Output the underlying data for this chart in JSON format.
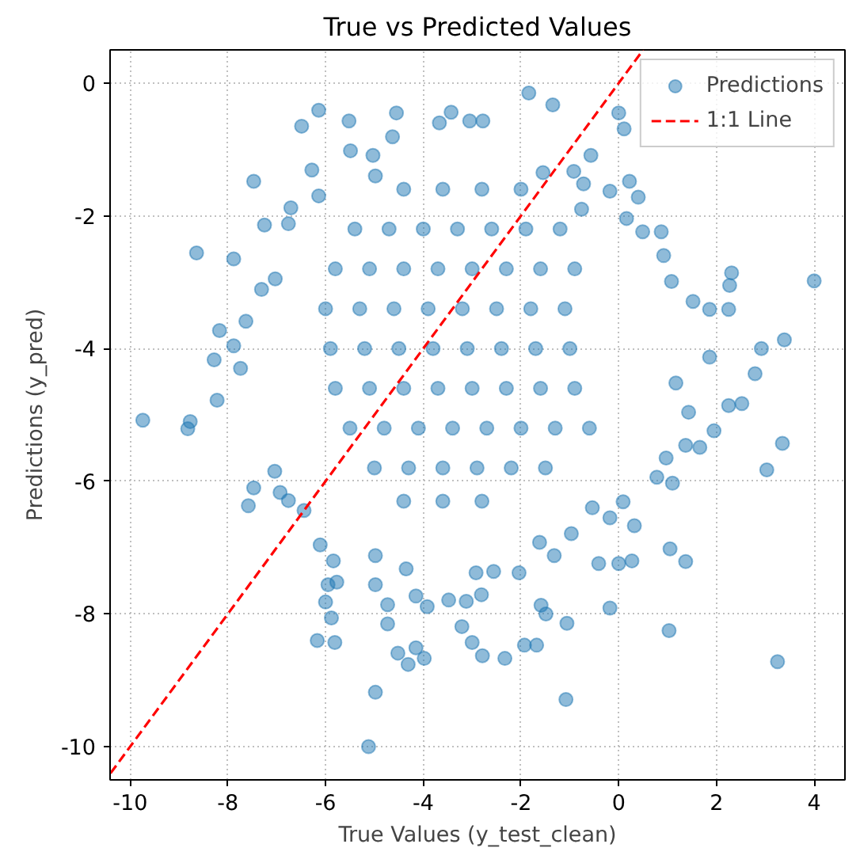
{
  "chart_data": {
    "type": "scatter",
    "title": "True vs Predicted Values",
    "xlabel": "True Values (y_test_clean)",
    "ylabel": "Predictions (y_pred)",
    "xlim": [
      -10.41,
      4.63
    ],
    "ylim": [
      -10.5,
      0.5
    ],
    "xticks": [
      -10,
      -8,
      -6,
      -4,
      -2,
      0,
      2,
      4
    ],
    "yticks": [
      -10,
      -8,
      -6,
      -4,
      -2,
      0
    ],
    "grid": true,
    "legend": "top right",
    "series": [
      {
        "name": "Predictions",
        "color": "#1f77b4",
        "marker": "circle",
        "x": [
          -6.14,
          -6.49,
          -5.52,
          -4.55,
          -7.47,
          -8.64,
          -7.88,
          -7.25,
          -6.28,
          -5.49,
          -6.14,
          -3.43,
          -3.67,
          -4.63,
          -8.17,
          -8.28,
          -7.88,
          -8.22,
          -9.74,
          -8.77,
          -7.31,
          -7.03,
          -6.76,
          -6.71,
          -7.63,
          -7.74,
          -5.03,
          -4.98,
          -1.84,
          -1.35,
          0.0,
          0.11,
          -0.57,
          0.22,
          0.4,
          -0.18,
          0.16,
          0.49,
          0.87,
          0.92,
          1.08,
          1.52,
          1.86,
          2.25,
          2.31,
          2.27,
          4.0,
          3.39,
          2.92,
          1.86,
          2.79,
          1.17,
          2.25,
          2.52,
          1.43,
          -0.92,
          -0.72,
          -3.05,
          -2.78,
          -1.55,
          -0.76,
          -8.82,
          -7.47,
          -7.58,
          -7.04,
          -6.17,
          -5.81,
          -5.88,
          -6.0,
          -5.95,
          -5.77,
          -5.84,
          -4.98,
          -5.12,
          -4.73,
          -4.73,
          -4.52,
          -4.31,
          -4.15,
          -3.98,
          -3.92,
          -4.98,
          -4.98,
          -4.35,
          -4.15,
          -3.21,
          -3.48,
          -3.0,
          -2.92,
          -6.44,
          -6.11,
          -6.93,
          -6.76,
          3.35,
          3.03,
          3.25,
          1.03,
          -1.08,
          -0.18,
          -1.06,
          -1.93,
          -1.68,
          -2.33,
          -2.79,
          -1.59,
          -1.49,
          -2.81,
          -3.12,
          -0.41,
          0.0,
          0.27,
          1.05,
          1.37,
          0.09,
          0.32,
          1.1,
          0.78,
          1.95,
          1.37,
          1.66,
          0.97,
          -0.18,
          -1.32,
          -1.62,
          -2.04,
          -2.56,
          -0.97,
          -0.54,
          -4.4,
          -3.6,
          -2.8,
          -2.0,
          -5.4,
          -4.7,
          -4.0,
          -3.3,
          -2.6,
          -1.9,
          -1.2,
          -5.8,
          -5.1,
          -4.4,
          -3.7,
          -3.0,
          -2.3,
          -1.6,
          -0.9,
          -6.0,
          -5.3,
          -4.6,
          -3.9,
          -3.2,
          -2.5,
          -1.8,
          -1.1,
          -5.9,
          -5.2,
          -4.5,
          -3.8,
          -3.1,
          -2.4,
          -1.7,
          -1.0,
          -5.8,
          -5.1,
          -4.4,
          -3.7,
          -3.0,
          -2.3,
          -1.6,
          -0.9,
          -5.5,
          -4.8,
          -4.1,
          -3.4,
          -2.7,
          -2.0,
          -1.3,
          -0.6,
          -5.0,
          -4.3,
          -3.6,
          -2.9,
          -2.2,
          -1.5,
          -4.4,
          -3.6,
          -2.8
        ],
        "values": [
          -0.41,
          -0.65,
          -0.57,
          -0.45,
          -1.48,
          -2.56,
          -2.65,
          -2.14,
          -1.31,
          -1.02,
          -1.7,
          -0.44,
          -0.6,
          -0.81,
          -3.73,
          -4.17,
          -3.96,
          -4.78,
          -5.08,
          -5.1,
          -3.11,
          -2.95,
          -2.12,
          -1.88,
          -3.59,
          -4.3,
          -1.09,
          -1.4,
          -0.15,
          -0.33,
          -0.45,
          -0.69,
          -1.09,
          -1.48,
          -1.72,
          -1.63,
          -2.04,
          -2.24,
          -2.24,
          -2.6,
          -2.99,
          -3.29,
          -3.41,
          -3.41,
          -2.86,
          -3.05,
          -2.98,
          -3.87,
          -4.0,
          -4.13,
          -4.38,
          -4.52,
          -4.86,
          -4.83,
          -4.96,
          -1.33,
          -1.52,
          -0.57,
          -0.57,
          -1.35,
          -1.9,
          -5.21,
          -6.1,
          -6.37,
          -5.85,
          -8.4,
          -8.43,
          -8.06,
          -7.82,
          -7.56,
          -7.52,
          -7.2,
          -9.18,
          -10.0,
          -7.86,
          -8.15,
          -8.59,
          -8.76,
          -8.51,
          -8.67,
          -7.89,
          -7.56,
          -7.12,
          -7.32,
          -7.73,
          -8.19,
          -7.79,
          -8.43,
          -7.38,
          -6.44,
          -6.96,
          -6.17,
          -6.29,
          -5.43,
          -5.83,
          -8.72,
          -8.25,
          -9.29,
          -7.91,
          -8.14,
          -8.47,
          -8.47,
          -8.67,
          -8.63,
          -7.87,
          -8.0,
          -7.71,
          -7.81,
          -7.24,
          -7.24,
          -7.2,
          -7.02,
          -7.21,
          -6.31,
          -6.67,
          -6.03,
          -5.94,
          -5.24,
          -5.46,
          -5.49,
          -5.65,
          -6.55,
          -7.12,
          -6.92,
          -7.38,
          -7.36,
          -6.79,
          -6.4,
          -1.6,
          -1.6,
          -1.6,
          -1.6,
          -2.2,
          -2.2,
          -2.2,
          -2.2,
          -2.2,
          -2.2,
          -2.2,
          -2.8,
          -2.8,
          -2.8,
          -2.8,
          -2.8,
          -2.8,
          -2.8,
          -2.8,
          -3.4,
          -3.4,
          -3.4,
          -3.4,
          -3.4,
          -3.4,
          -3.4,
          -3.4,
          -4.0,
          -4.0,
          -4.0,
          -4.0,
          -4.0,
          -4.0,
          -4.0,
          -4.0,
          -4.6,
          -4.6,
          -4.6,
          -4.6,
          -4.6,
          -4.6,
          -4.6,
          -4.6,
          -5.2,
          -5.2,
          -5.2,
          -5.2,
          -5.2,
          -5.2,
          -5.2,
          -5.2,
          -5.8,
          -5.8,
          -5.8,
          -5.8,
          -5.8,
          -5.8,
          -6.3,
          -6.3,
          -6.3
        ]
      },
      {
        "name": "1:1 Line",
        "type": "line",
        "color": "#ff0000",
        "line_style": "dashed",
        "x": [
          -10.4,
          0.5
        ],
        "values": [
          -10.4,
          0.5
        ]
      }
    ]
  }
}
